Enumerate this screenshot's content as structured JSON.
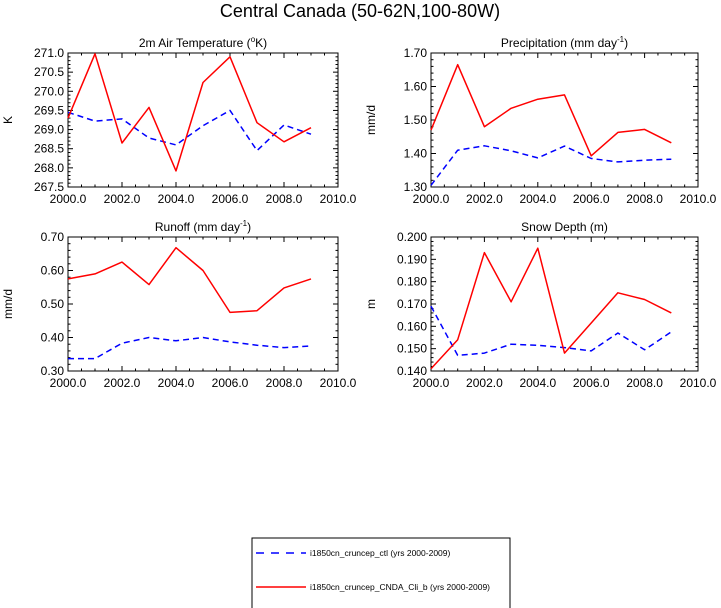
{
  "figure": {
    "title": "Central Canada (50-62N,100-80W)"
  },
  "legend": {
    "entries": [
      {
        "label": "i1850cn_cruncep_ctl (yrs 2000-2009)",
        "color": "#0000ff",
        "style": "dashed"
      },
      {
        "label": "i1850cn_cruncep_CNDA_Cli_b (yrs 2000-2009)",
        "color": "#ff0000",
        "style": "solid"
      }
    ]
  },
  "colors": {
    "ctl": "#0000ff",
    "cnda": "#ff0000",
    "axis": "#000000"
  },
  "chart_data": [
    {
      "type": "line",
      "title": "2m Air Temperature (°K)",
      "title_main": "2m Air Temperature (",
      "title_sup": "o",
      "title_tail": "K)",
      "xlabel": "",
      "ylabel": "K",
      "xlim": [
        2000,
        2010
      ],
      "ylim": [
        267.5,
        271.0
      ],
      "xticks": [
        2000,
        2002,
        2004,
        2006,
        2008,
        2010
      ],
      "xtick_labels": [
        "2000.0",
        "2002.0",
        "2004.0",
        "2006.0",
        "2008.0",
        "2010.0"
      ],
      "yticks": [
        267.5,
        268.0,
        268.5,
        269.0,
        269.5,
        270.0,
        270.5,
        271.0
      ],
      "ytick_labels": [
        "267.5",
        "268.0",
        "268.5",
        "269.0",
        "269.5",
        "270.0",
        "270.5",
        "271.0"
      ],
      "x": [
        2000,
        2001,
        2002,
        2003,
        2004,
        2005,
        2006,
        2007,
        2008,
        2009
      ],
      "series": [
        {
          "key": "ctl",
          "values": [
            269.45,
            269.22,
            269.28,
            268.78,
            268.6,
            269.1,
            269.5,
            268.45,
            269.12,
            268.88
          ]
        },
        {
          "key": "cnda",
          "values": [
            269.3,
            270.98,
            268.65,
            269.58,
            267.92,
            270.23,
            270.9,
            269.18,
            268.68,
            269.05
          ]
        }
      ],
      "grid": false
    },
    {
      "type": "line",
      "title": "Precipitation (mm day-1)",
      "title_main": "Precipitation (mm day",
      "title_sup": "-1",
      "title_tail": ")",
      "xlabel": "",
      "ylabel": "mm/d",
      "xlim": [
        2000,
        2010
      ],
      "ylim": [
        1.3,
        1.7
      ],
      "xticks": [
        2000,
        2002,
        2004,
        2006,
        2008,
        2010
      ],
      "xtick_labels": [
        "2000.0",
        "2002.0",
        "2004.0",
        "2006.0",
        "2008.0",
        "2010.0"
      ],
      "yticks": [
        1.3,
        1.4,
        1.5,
        1.6,
        1.7
      ],
      "ytick_labels": [
        "1.30",
        "1.40",
        "1.50",
        "1.60",
        "1.70"
      ],
      "x": [
        2000,
        2001,
        2002,
        2003,
        2004,
        2005,
        2006,
        2007,
        2008,
        2009
      ],
      "series": [
        {
          "key": "ctl",
          "values": [
            1.305,
            1.41,
            1.423,
            1.408,
            1.387,
            1.422,
            1.385,
            1.375,
            1.38,
            1.383
          ]
        },
        {
          "key": "cnda",
          "values": [
            1.47,
            1.665,
            1.48,
            1.535,
            1.562,
            1.575,
            1.393,
            1.463,
            1.472,
            1.432
          ]
        }
      ],
      "grid": false
    },
    {
      "type": "line",
      "title": "Runoff (mm day-1)",
      "title_main": "Runoff (mm day",
      "title_sup": "-1",
      "title_tail": ")",
      "xlabel": "",
      "ylabel": "mm/d",
      "xlim": [
        2000,
        2010
      ],
      "ylim": [
        0.3,
        0.7
      ],
      "xticks": [
        2000,
        2002,
        2004,
        2006,
        2008,
        2010
      ],
      "xtick_labels": [
        "2000.0",
        "2002.0",
        "2004.0",
        "2006.0",
        "2008.0",
        "2010.0"
      ],
      "yticks": [
        0.3,
        0.4,
        0.5,
        0.6,
        0.7
      ],
      "ytick_labels": [
        "0.30",
        "0.40",
        "0.50",
        "0.60",
        "0.70"
      ],
      "x": [
        2000,
        2001,
        2002,
        2003,
        2004,
        2005,
        2006,
        2007,
        2008,
        2009
      ],
      "series": [
        {
          "key": "ctl",
          "values": [
            0.337,
            0.337,
            0.383,
            0.4,
            0.39,
            0.4,
            0.387,
            0.377,
            0.37,
            0.375
          ]
        },
        {
          "key": "cnda",
          "values": [
            0.575,
            0.59,
            0.625,
            0.558,
            0.668,
            0.6,
            0.475,
            0.48,
            0.548,
            0.575
          ]
        }
      ],
      "grid": false
    },
    {
      "type": "line",
      "title": "Snow Depth (m)",
      "title_main": "Snow Depth (m)",
      "title_sup": "",
      "title_tail": "",
      "xlabel": "",
      "ylabel": "m",
      "xlim": [
        2000,
        2010
      ],
      "ylim": [
        0.14,
        0.2
      ],
      "xticks": [
        2000,
        2002,
        2004,
        2006,
        2008,
        2010
      ],
      "xtick_labels": [
        "2000.0",
        "2002.0",
        "2004.0",
        "2006.0",
        "2008.0",
        "2010.0"
      ],
      "yticks": [
        0.14,
        0.15,
        0.16,
        0.17,
        0.18,
        0.19,
        0.2
      ],
      "ytick_labels": [
        "0.140",
        "0.150",
        "0.160",
        "0.170",
        "0.180",
        "0.190",
        "0.200"
      ],
      "x": [
        2000,
        2001,
        2002,
        2003,
        2004,
        2005,
        2006,
        2007,
        2008,
        2009
      ],
      "series": [
        {
          "key": "ctl",
          "values": [
            0.169,
            0.147,
            0.148,
            0.152,
            0.1515,
            0.1505,
            0.149,
            0.157,
            0.1495,
            0.1575
          ]
        },
        {
          "key": "cnda",
          "values": [
            0.141,
            0.154,
            0.193,
            0.171,
            0.195,
            0.148,
            0.1615,
            0.175,
            0.172,
            0.166
          ]
        }
      ],
      "grid": false
    }
  ]
}
